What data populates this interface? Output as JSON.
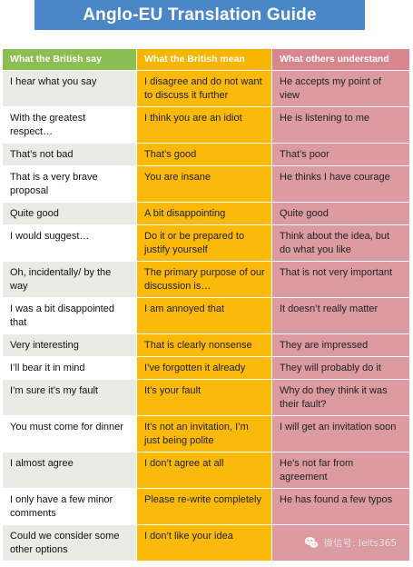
{
  "title": "Anglo-EU Translation Guide",
  "headers": {
    "british_say": "What the British say",
    "british_mean": "What the British mean",
    "others_understand": "What others understand"
  },
  "rows": [
    {
      "say": "I hear what you say",
      "mean": "I disagree and do not want to discuss it further",
      "understood": "He accepts my point of view"
    },
    {
      "say": "With the greatest respect…",
      "mean": "I think you are an idiot",
      "understood": "He is listening to me"
    },
    {
      "say": "That’s not bad",
      "mean": "That’s good",
      "understood": "That’s poor"
    },
    {
      "say": "That is a very brave proposal",
      "mean": "You are insane",
      "understood": "He thinks I have courage"
    },
    {
      "say": "Quite good",
      "mean": "A bit disappointing",
      "understood": "Quite good"
    },
    {
      "say": "I would suggest…",
      "mean": "Do it or be prepared to justify yourself",
      "understood": "Think about the idea, but do what you like"
    },
    {
      "say": "Oh, incidentally/ by the way",
      "mean": "The primary purpose of our discussion is…",
      "understood": "That is not very important"
    },
    {
      "say": "I was a bit disappointed that",
      "mean": "I am annoyed that",
      "understood": "It doesn’t really matter"
    },
    {
      "say": "Very interesting",
      "mean": "That is clearly nonsense",
      "understood": "They are impressed"
    },
    {
      "say": "I’ll bear it in mind",
      "mean": "I’ve forgotten it already",
      "understood": "They will probably do it"
    },
    {
      "say": "I’m sure it’s my fault",
      "mean": "It’s your fault",
      "understood": "Why do they think it was their fault?"
    },
    {
      "say": "You must come for dinner",
      "mean": "It’s not an invitation, I’m just being polite",
      "understood": "I will get an invitation soon"
    },
    {
      "say": "I almost agree",
      "mean": "I don’t agree at all",
      "understood": "He’s not far from agreement"
    },
    {
      "say": "I only have a few minor comments",
      "mean": "Please re-write completely",
      "understood": "He has found a few typos"
    },
    {
      "say": "Could we consider some other options",
      "mean": "I don’t like your idea",
      "understood": ""
    }
  ],
  "watermark": {
    "icon": "wechat-icon",
    "text": "微信号: Ielts365"
  },
  "colors": {
    "title_bg": "#4a86c8",
    "british_header": "#8bbf52",
    "mean_header": "#f7b500",
    "others_header": "#d9858e",
    "mean_cell": "#fbb90c",
    "others_cell": "#dc9aa1",
    "stripe": "#e9ebe4"
  }
}
